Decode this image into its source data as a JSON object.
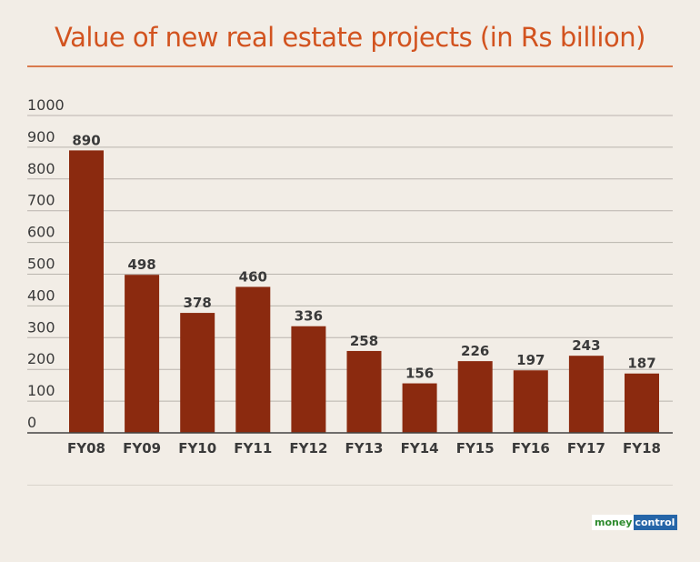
{
  "title": "Value of new real estate projects (in Rs billion)",
  "chart_data": {
    "type": "bar",
    "title": "Value of new real estate projects (in Rs billion)",
    "categories": [
      "FY08",
      "FY09",
      "FY10",
      "FY11",
      "FY12",
      "FY13",
      "FY14",
      "FY15",
      "FY16",
      "FY17",
      "FY18"
    ],
    "values": [
      890,
      498,
      378,
      460,
      336,
      258,
      156,
      226,
      197,
      243,
      187
    ],
    "ylim": [
      0,
      1000
    ],
    "yticks": [
      "0",
      "100",
      "200",
      "300",
      "400",
      "500",
      "600",
      "700",
      "800",
      "900",
      "1000"
    ],
    "grid": true,
    "bar_color": "#8b2a0f",
    "xlabel": "",
    "ylabel": ""
  },
  "logo": {
    "part1": "money",
    "part2": "control"
  }
}
